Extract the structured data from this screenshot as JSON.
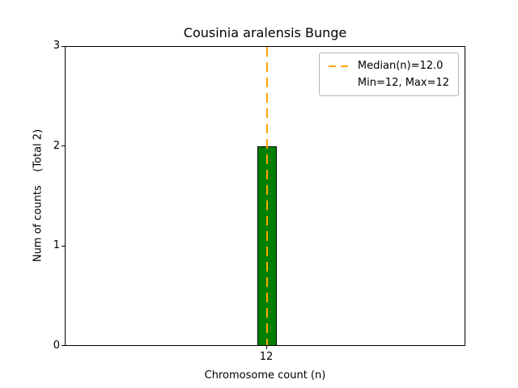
{
  "figure": {
    "title": "Cousinia aralensis Bunge",
    "xlabel": "Chromosome count (n)",
    "ylabel": "Num of counts    (Total 2)"
  },
  "axis": {
    "y_ticks": [
      "0",
      "1",
      "2",
      "3"
    ],
    "x_ticks": [
      "12"
    ]
  },
  "legend": {
    "median_label": "Median(n)=12.0",
    "minmax_label": "Min=12, Max=12",
    "position": "upper right"
  },
  "chart_data": {
    "type": "bar",
    "title": "Cousinia aralensis Bunge",
    "xlabel": "Chromosome count (n)",
    "ylabel": "Num of counts    (Total 2)",
    "categories": [
      12
    ],
    "values": [
      2
    ],
    "total_counts": 2,
    "median_n": 12.0,
    "min_n": 12,
    "max_n": 12,
    "ylim": [
      0,
      3
    ],
    "y_tick_values": [
      0,
      1,
      2,
      3
    ],
    "grid": false,
    "legend_position": "upper right",
    "bar_color": "#008000",
    "bar_edge_color": "#000000",
    "median_line_color": "#ffa500",
    "median_line_style": "dashed"
  }
}
